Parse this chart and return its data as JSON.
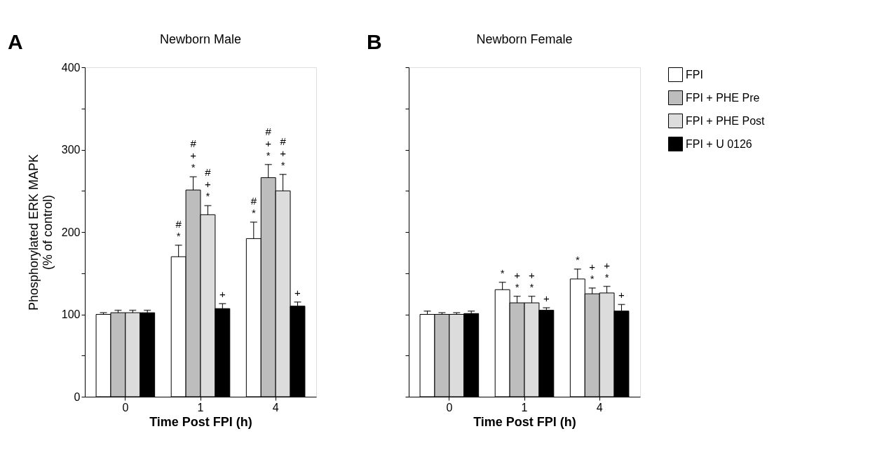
{
  "chart_data": [
    {
      "type": "bar",
      "title": "Newborn Male",
      "xlabel": "Time Post FPI (h)",
      "ylabel": "Phosphorylated ERK MAPK\n(% of control)",
      "annotations": [
        "A"
      ],
      "categories": [
        "0",
        "1",
        "4"
      ],
      "ylim": [
        0,
        400
      ],
      "yticks": [
        0,
        {
          "value": 50,
          "label": null
        },
        100,
        {
          "value": 150,
          "label": null
        },
        200,
        {
          "value": 250,
          "label": null
        },
        300,
        {
          "value": 350,
          "label": null
        },
        400
      ],
      "grid": false,
      "legend": false,
      "series": [
        {
          "color": "#ffffff",
          "values": [
            100,
            170,
            192
          ],
          "errors": [
            2,
            14,
            20
          ],
          "value_labels": [
            null,
            "#\n*",
            "#\n*"
          ]
        },
        {
          "color": "#bdbdbd",
          "values": [
            102,
            251,
            266
          ],
          "errors": [
            3,
            16,
            16
          ],
          "value_labels": [
            null,
            "#\n+\n*",
            "#\n+\n*"
          ]
        },
        {
          "color": "#dcdcdc",
          "values": [
            102,
            221,
            250
          ],
          "errors": [
            3,
            11,
            20
          ],
          "value_labels": [
            null,
            "#\n+\n*",
            "#\n+\n*"
          ]
        },
        {
          "color": "#000000",
          "values": [
            102,
            107,
            110
          ],
          "errors": [
            3,
            6,
            5
          ],
          "value_labels": [
            null,
            "+",
            "+"
          ]
        }
      ]
    },
    {
      "type": "bar",
      "title": "Newborn Female",
      "xlabel": "Time Post FPI (h)",
      "annotations": [
        "B"
      ],
      "categories": [
        "0",
        "1",
        "4"
      ],
      "ylim": [
        0,
        400
      ],
      "yticks": [
        0,
        {
          "value": 50,
          "label": null
        },
        100,
        {
          "value": 150,
          "label": null
        },
        200,
        {
          "value": 250,
          "label": null
        },
        300,
        {
          "value": 350,
          "label": null
        },
        400
      ],
      "tick_labels": "x",
      "grid": false,
      "legend": "right",
      "series": [
        {
          "name": "FPI",
          "color": "#ffffff",
          "values": [
            100,
            130,
            143
          ],
          "errors": [
            4,
            9,
            12
          ],
          "value_labels": [
            null,
            "*",
            "*"
          ]
        },
        {
          "name": "FPI + PHE Pre",
          "color": "#bdbdbd",
          "values": [
            100,
            114,
            125
          ],
          "errors": [
            2,
            8,
            7
          ],
          "value_labels": [
            null,
            "+\n*",
            "+\n*"
          ]
        },
        {
          "name": "FPI + PHE Post",
          "color": "#dcdcdc",
          "values": [
            100,
            114,
            126
          ],
          "errors": [
            2,
            8,
            8
          ],
          "value_labels": [
            null,
            "+\n*",
            "+\n*"
          ]
        },
        {
          "name": "FPI + U 0126",
          "color": "#000000",
          "values": [
            101,
            105,
            104
          ],
          "errors": [
            3,
            3,
            8
          ],
          "value_labels": [
            null,
            "+",
            "+"
          ]
        }
      ]
    }
  ]
}
